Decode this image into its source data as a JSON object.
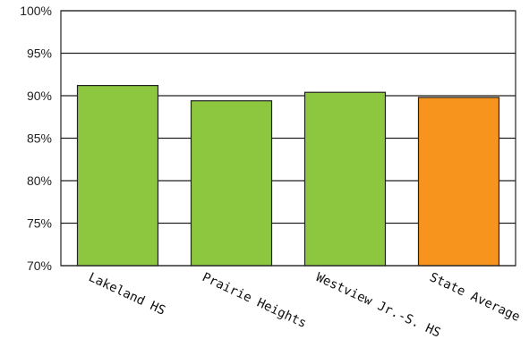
{
  "chart_data": {
    "type": "bar",
    "categories": [
      "Lakeland HS",
      "Prairie Heights",
      "Westview Jr.-S. HS",
      "State Average"
    ],
    "values": [
      91.2,
      89.4,
      90.4,
      89.8
    ],
    "ylim": [
      70,
      100
    ],
    "yticks": [
      70,
      75,
      80,
      85,
      90,
      95,
      100
    ],
    "ytick_labels": [
      "70%",
      "75%",
      "80%",
      "85%",
      "90%",
      "95%",
      "100%"
    ],
    "grid": true,
    "bar_colors": [
      "#8dc63f",
      "#8dc63f",
      "#8dc63f",
      "#f7941d"
    ],
    "title": "",
    "xlabel": "",
    "ylabel": ""
  }
}
